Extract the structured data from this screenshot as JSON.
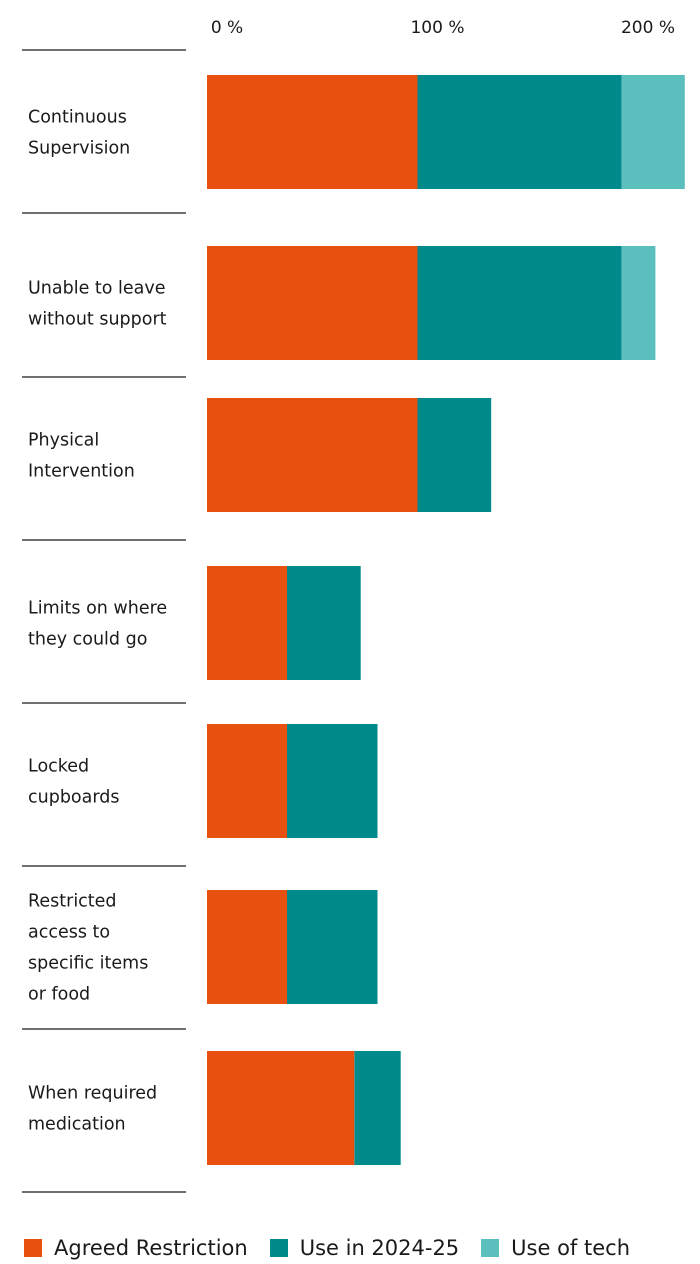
{
  "chart_data": {
    "type": "bar",
    "orientation": "horizontal",
    "stacked": true,
    "categories": [
      [
        "Continuous",
        "Supervision"
      ],
      [
        "Unable to leave",
        "without support"
      ],
      [
        "Physical",
        "Intervention"
      ],
      [
        "Limits on where",
        "they could go"
      ],
      [
        "Locked",
        "cupboards"
      ],
      [
        "Restricted",
        "access to",
        "specific items",
        "or food"
      ],
      [
        "When required",
        "medication"
      ]
    ],
    "series": [
      {
        "name": "Agreed Restriction",
        "color": "#e8500f",
        "values": [
          100,
          100,
          100,
          38,
          38,
          38,
          70
        ]
      },
      {
        "name": "Use in 2024-25",
        "color": "#008a8c",
        "values": [
          97,
          97,
          35,
          35,
          43,
          43,
          22
        ]
      },
      {
        "name": "Use of tech",
        "color": "#5bbfbd",
        "values": [
          30,
          16,
          0,
          0,
          0,
          0,
          0
        ]
      }
    ],
    "xaxis": {
      "ticks": [
        0,
        100,
        200
      ],
      "tick_labels": [
        "0 %",
        "100 %",
        "200 %"
      ],
      "range": [
        0,
        227
      ],
      "position": "top"
    },
    "grid": false,
    "legend": {
      "position": "bottom"
    }
  }
}
